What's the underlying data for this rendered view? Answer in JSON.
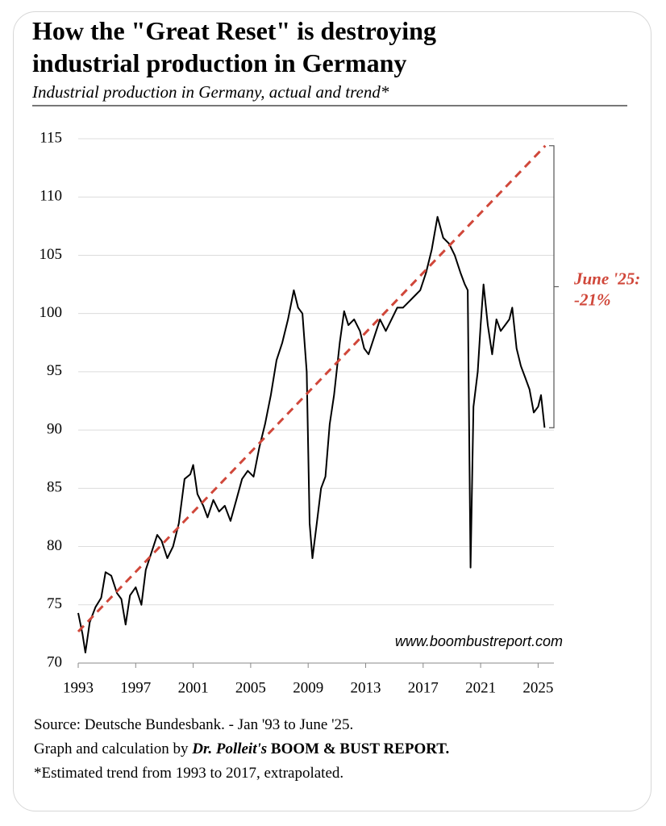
{
  "chart_data": {
    "type": "line",
    "title": "How the \"Great Reset\" is destroying industrial production in Germany",
    "subtitle": "Industrial production in Germany, actual and trend*",
    "watermark": "www.boombustreport.com",
    "annotations": [
      "June '25:",
      "-21%"
    ],
    "notes": [
      "Source: Deutsche Bundesbank. - Jan '93 to June '25.",
      "Graph and calculation by",
      "Dr. Polleit's",
      "BOOM & BUST REPORT.",
      "*Estimated trend from 1993 to 2017, extrapolated."
    ],
    "xlim": [
      1993,
      2026.1
    ],
    "xticks": [
      1993,
      1997,
      2001,
      2005,
      2009,
      2013,
      2017,
      2021,
      2025
    ],
    "ylim": [
      70,
      115
    ],
    "yticks": [
      70,
      75,
      80,
      85,
      90,
      95,
      100,
      105,
      110,
      115
    ],
    "grid": true,
    "series": [
      {
        "color": "#000000",
        "dash": false,
        "x": [
          1993.0,
          1993.3,
          1993.5,
          1993.8,
          1994.2,
          1994.6,
          1994.9,
          1995.3,
          1995.7,
          1996.0,
          1996.3,
          1996.6,
          1997.0,
          1997.4,
          1997.7,
          1998.1,
          1998.5,
          1998.8,
          1999.2,
          1999.6,
          2000.0,
          2000.4,
          2000.8,
          2001.0,
          2001.3,
          2001.7,
          2002.0,
          2002.4,
          2002.8,
          2003.2,
          2003.6,
          2004.0,
          2004.4,
          2004.8,
          2005.2,
          2005.6,
          2006.0,
          2006.4,
          2006.8,
          2007.2,
          2007.6,
          2008.0,
          2008.3,
          2008.6,
          2008.9,
          2009.1,
          2009.3,
          2009.6,
          2009.9,
          2010.2,
          2010.5,
          2010.8,
          2011.2,
          2011.5,
          2011.8,
          2012.2,
          2012.6,
          2012.9,
          2013.2,
          2013.6,
          2014.0,
          2014.4,
          2014.8,
          2015.2,
          2015.6,
          2016.0,
          2016.4,
          2016.8,
          2017.2,
          2017.6,
          2018.0,
          2018.4,
          2018.8,
          2019.2,
          2019.6,
          2019.9,
          2020.1,
          2020.3,
          2020.5,
          2020.8,
          2021.0,
          2021.2,
          2021.5,
          2021.8,
          2022.1,
          2022.4,
          2022.7,
          2023.0,
          2023.2,
          2023.5,
          2023.8,
          2024.1,
          2024.4,
          2024.7,
          2025.0,
          2025.2,
          2025.45
        ],
        "values": [
          74.3,
          72.5,
          70.9,
          73.5,
          74.8,
          75.6,
          77.8,
          77.5,
          76.0,
          75.5,
          73.3,
          75.8,
          76.5,
          75.0,
          78.0,
          79.5,
          81.0,
          80.5,
          79.0,
          80.0,
          82.0,
          85.8,
          86.2,
          87.0,
          84.5,
          83.5,
          82.5,
          84.0,
          83.0,
          83.5,
          82.2,
          84.0,
          85.8,
          86.5,
          86.0,
          88.5,
          90.5,
          93.0,
          96.0,
          97.5,
          99.5,
          102.0,
          100.5,
          100.0,
          95.0,
          82.0,
          79.0,
          82.0,
          85.0,
          86.0,
          90.5,
          93.0,
          97.5,
          100.2,
          99.0,
          99.5,
          98.5,
          97.0,
          96.5,
          98.0,
          99.5,
          98.5,
          99.5,
          100.5,
          100.5,
          101.0,
          101.5,
          102.0,
          103.5,
          105.5,
          108.3,
          106.5,
          106.0,
          105.0,
          103.5,
          102.5,
          102.0,
          78.2,
          92.0,
          95.0,
          99.0,
          102.5,
          99.0,
          96.5,
          99.5,
          98.5,
          99.0,
          99.5,
          100.5,
          97.0,
          95.5,
          94.5,
          93.5,
          91.5,
          92.0,
          93.0,
          90.2
        ]
      },
      {
        "color": "#d0473a",
        "dash": true,
        "x": [
          1993.0,
          2025.5
        ],
        "values": [
          72.7,
          114.4
        ]
      }
    ]
  }
}
